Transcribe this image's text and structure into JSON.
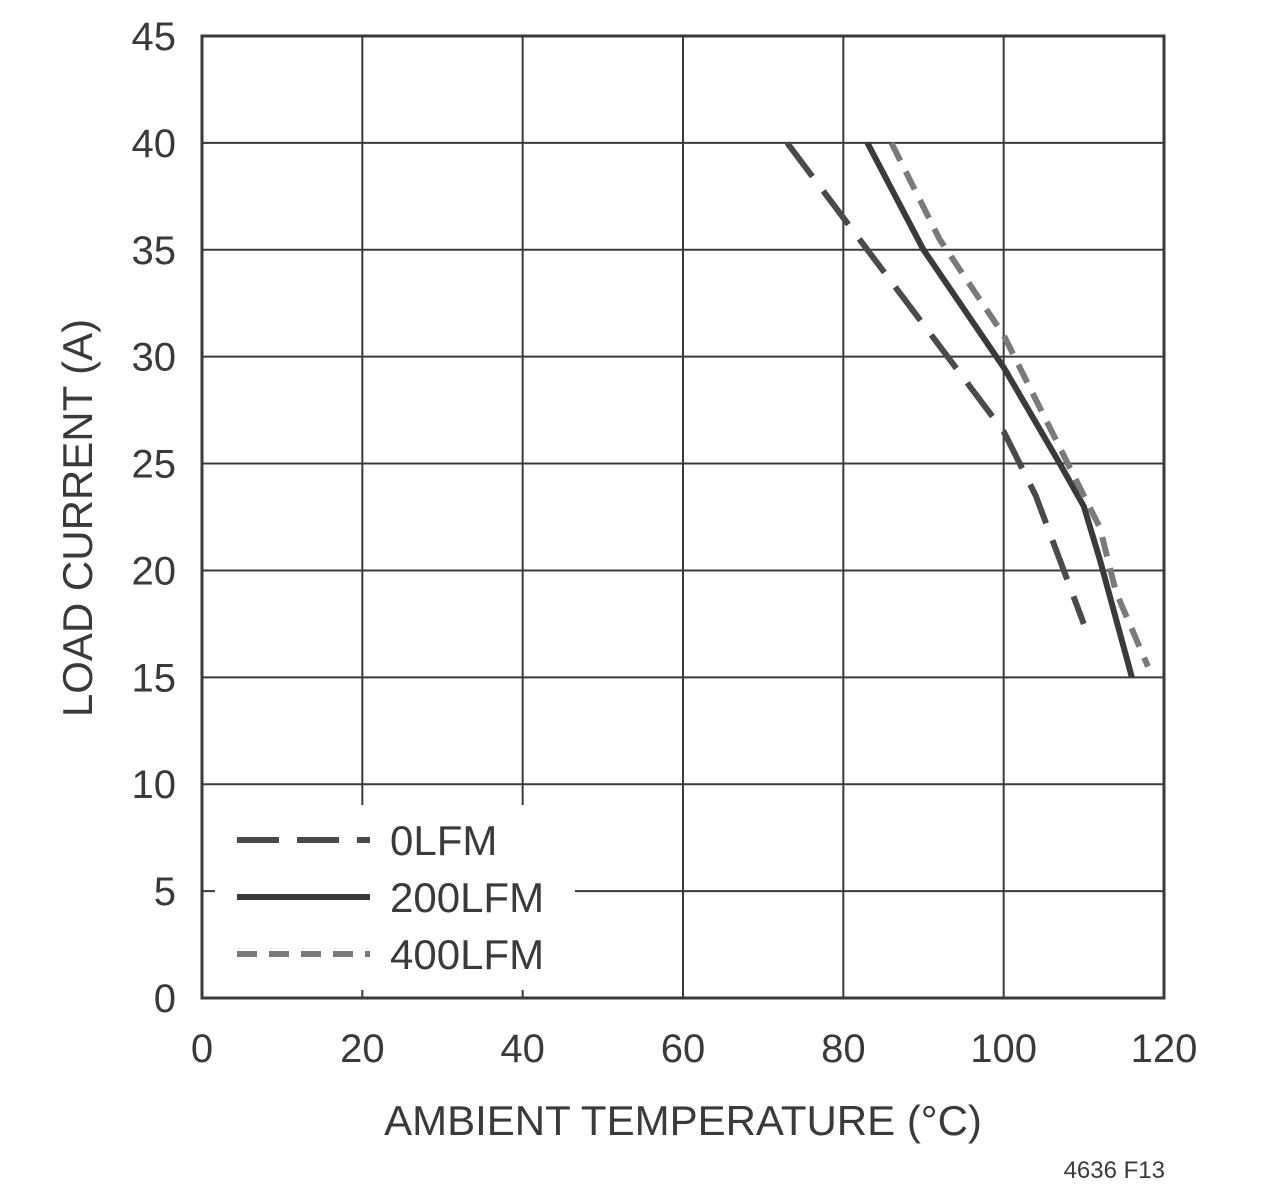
{
  "chart_data": {
    "type": "line",
    "title": "",
    "xlabel": "AMBIENT TEMPERATURE (°C)",
    "ylabel": "LOAD CURRENT (A)",
    "xlim": [
      0,
      120
    ],
    "ylim": [
      0,
      45
    ],
    "xticks": [
      0,
      20,
      40,
      60,
      80,
      100,
      120
    ],
    "yticks": [
      0,
      5,
      10,
      15,
      20,
      25,
      30,
      35,
      40,
      45
    ],
    "grid": true,
    "legend_position": "bottom-left",
    "figure_id": "4636 F13",
    "series": [
      {
        "name": "0LFM",
        "style": "long-dash",
        "color": "#4a4a4a",
        "points": [
          [
            73,
            40
          ],
          [
            80,
            36.5
          ],
          [
            90,
            31.5
          ],
          [
            100,
            26.5
          ],
          [
            104,
            23.5
          ],
          [
            107,
            20.5
          ],
          [
            110,
            17.5
          ]
        ]
      },
      {
        "name": "200LFM",
        "style": "solid",
        "color": "#3a3a3a",
        "points": [
          [
            83,
            40
          ],
          [
            90,
            35
          ],
          [
            100,
            29.5
          ],
          [
            107,
            25
          ],
          [
            110,
            23
          ],
          [
            112,
            20.5
          ],
          [
            116,
            15
          ]
        ]
      },
      {
        "name": "400LFM",
        "style": "short-dash",
        "color": "#7a7a7a",
        "points": [
          [
            86,
            40
          ],
          [
            92,
            35.5
          ],
          [
            100,
            31
          ],
          [
            104,
            28
          ],
          [
            108,
            25
          ],
          [
            112,
            22
          ],
          [
            114,
            19
          ],
          [
            118,
            15.5
          ]
        ]
      }
    ]
  }
}
